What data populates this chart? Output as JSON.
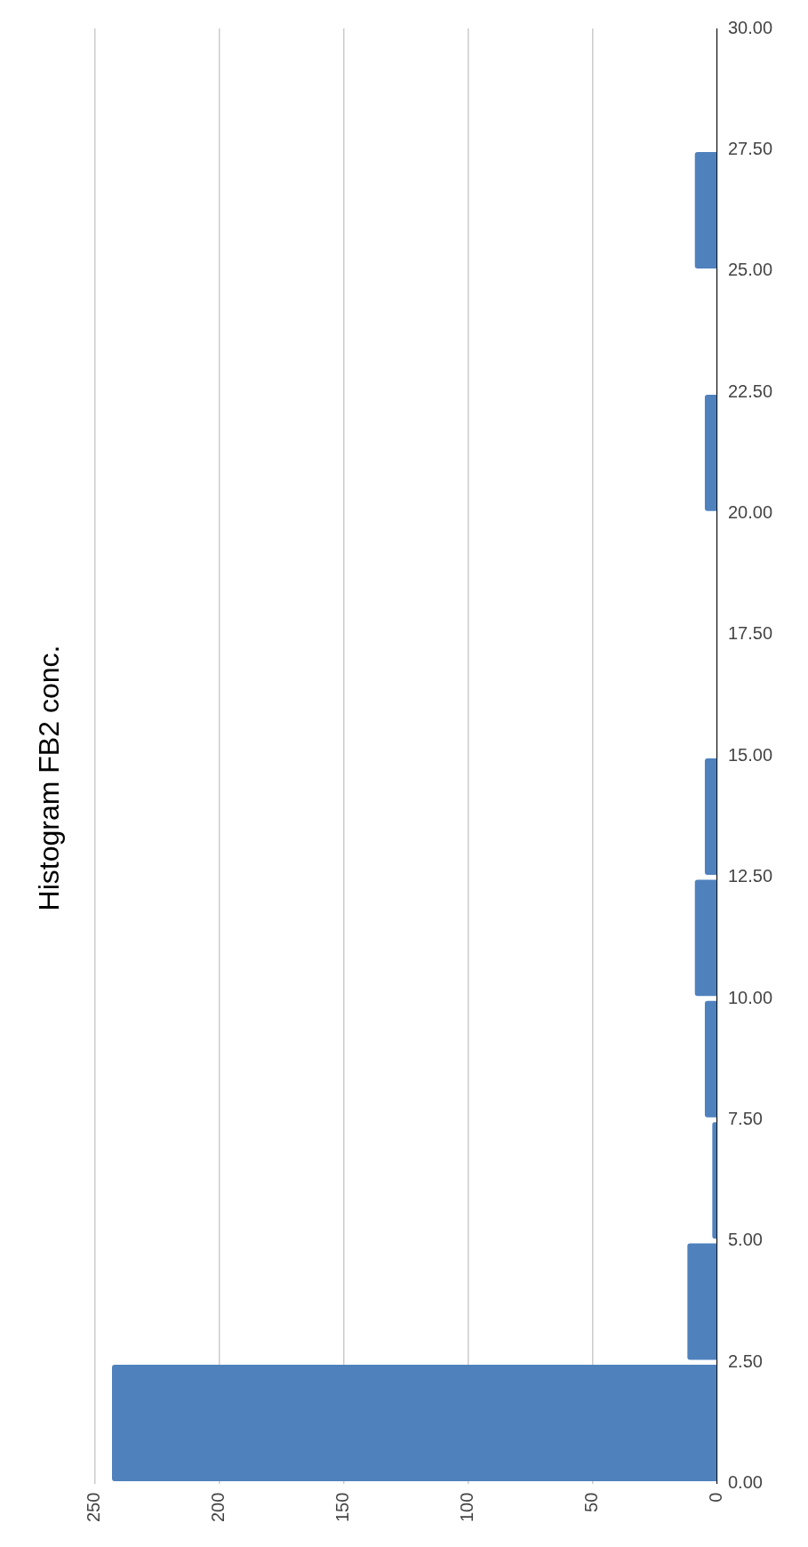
{
  "chart_data": {
    "type": "histogram",
    "title": "Histogram FB2 conc.",
    "orientation": "horizontal",
    "bins": [
      0,
      2.5,
      5,
      7.5,
      10,
      12.5,
      15,
      17.5,
      20,
      22.5,
      25,
      27.5,
      30
    ],
    "values": [
      243,
      12,
      2,
      5,
      9,
      5,
      0,
      0,
      5,
      0,
      9,
      0
    ],
    "color": "#4f81bd",
    "ylim": [
      0,
      30
    ],
    "yticks": [
      {
        "value": 0,
        "label": "0.00"
      },
      {
        "value": 2.5,
        "label": "2.50"
      },
      {
        "value": 5,
        "label": "5.00"
      },
      {
        "value": 7.5,
        "label": "7.50"
      },
      {
        "value": 10,
        "label": "10.00"
      },
      {
        "value": 12.5,
        "label": "12.50"
      },
      {
        "value": 15,
        "label": "15.00"
      },
      {
        "value": 17.5,
        "label": "17.50"
      },
      {
        "value": 20,
        "label": "20.00"
      },
      {
        "value": 22.5,
        "label": "22.50"
      },
      {
        "value": 25,
        "label": "25.00"
      },
      {
        "value": 27.5,
        "label": "27.50"
      },
      {
        "value": 30,
        "label": "30.00"
      }
    ],
    "xlim": [
      250,
      0
    ],
    "xticks": [
      0,
      50,
      100,
      150,
      200,
      250
    ],
    "grid": "x",
    "legend": false
  }
}
